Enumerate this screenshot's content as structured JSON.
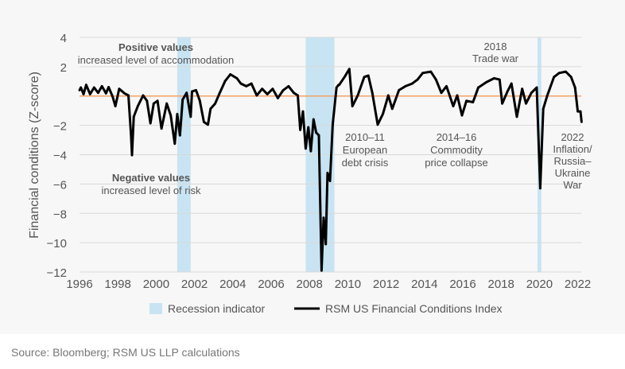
{
  "chart_data": {
    "type": "line",
    "ylabel": "Financial conditions (Z-score)",
    "xlabel": "",
    "xlim": [
      1996,
      2022.3
    ],
    "ylim": [
      -12,
      4
    ],
    "x_ticks": [
      1996,
      1998,
      2000,
      2002,
      2004,
      2006,
      2008,
      2010,
      2012,
      2014,
      2016,
      2018,
      2020,
      2022
    ],
    "x_tick_labels": [
      "1996",
      "1998",
      "2000",
      "2002",
      "2004",
      "2006",
      "2008",
      "2010",
      "2012",
      "2014",
      "2016",
      "2018",
      "2020",
      "2022"
    ],
    "y_ticks": [
      4,
      2,
      -2,
      -4,
      -6,
      -8,
      -10,
      -12
    ],
    "y_tick_labels": [
      "4",
      "2",
      "−2",
      "−4",
      "−6",
      "−8",
      "−10",
      "−12"
    ],
    "reference_line": 0,
    "grid": true,
    "recessions": [
      [
        2001.1,
        2001.8
      ],
      [
        2007.8,
        2009.3
      ],
      [
        2019.9,
        2020.1
      ]
    ],
    "legend": {
      "placement": "bottom",
      "items": [
        "Recession indicator",
        "RSM US Financial Conditions Index"
      ]
    },
    "series": [
      {
        "name": "RSM US Financial Conditions Index",
        "x": [
          1996.0,
          1996.07,
          1996.21,
          1996.35,
          1996.55,
          1996.76,
          1996.97,
          1997.17,
          1997.38,
          1997.52,
          1997.73,
          1997.87,
          1998.07,
          1998.35,
          1998.55,
          1998.69,
          1998.74,
          1998.83,
          1999.04,
          1999.32,
          1999.52,
          1999.7,
          1999.87,
          2000.07,
          2000.28,
          2000.55,
          2000.76,
          2000.97,
          2001.1,
          2001.24,
          2001.38,
          2001.59,
          2001.8,
          2001.87,
          2002.08,
          2002.28,
          2002.49,
          2002.7,
          2002.84,
          2003.08,
          2003.32,
          2003.6,
          2003.87,
          2004.21,
          2004.42,
          2004.7,
          2004.97,
          2005.25,
          2005.53,
          2005.8,
          2006.08,
          2006.35,
          2006.63,
          2006.91,
          2007.18,
          2007.39,
          2007.52,
          2007.66,
          2007.8,
          2007.94,
          2008.07,
          2008.21,
          2008.35,
          2008.49,
          2008.63,
          2008.74,
          2008.85,
          2008.94,
          2009.07,
          2009.21,
          2009.41,
          2009.52,
          2009.55,
          2009.83,
          2010.08,
          2010.24,
          2010.52,
          2010.86,
          2011.07,
          2011.28,
          2011.56,
          2011.83,
          2012.11,
          2012.32,
          2012.67,
          2013.01,
          2013.36,
          2013.64,
          2013.91,
          2014.33,
          2014.6,
          2014.88,
          2015.15,
          2015.5,
          2015.71,
          2015.96,
          2016.19,
          2016.53,
          2016.81,
          2017.23,
          2017.64,
          2017.92,
          2018.06,
          2018.33,
          2018.54,
          2018.82,
          2019.1,
          2019.3,
          2019.58,
          2019.86,
          2020.04,
          2020.2,
          2020.41,
          2020.76,
          2021.03,
          2021.37,
          2021.65,
          2021.86,
          2022.0,
          2022.14,
          2022.2
        ],
        "values": [
          0.4,
          0.58,
          0.13,
          0.76,
          0.13,
          0.58,
          0.22,
          0.67,
          0.18,
          0.61,
          -0.05,
          -0.69,
          0.49,
          0.18,
          0.04,
          -2.68,
          -4.03,
          -1.41,
          -0.69,
          0.04,
          -0.33,
          -1.86,
          -0.51,
          -0.33,
          -2.22,
          -0.51,
          -1.32,
          -3.25,
          -1.23,
          -2.68,
          -0.24,
          0.22,
          -1.41,
          0.31,
          0.4,
          -0.33,
          -1.77,
          -1.95,
          -0.87,
          -0.51,
          0.22,
          1.03,
          1.48,
          1.21,
          0.85,
          0.67,
          0.85,
          0.04,
          0.49,
          0.13,
          0.49,
          -0.14,
          0.4,
          0.67,
          0.22,
          0.04,
          -2.31,
          -1.05,
          -3.58,
          -2.13,
          -3.76,
          -1.59,
          -2.49,
          -2.68,
          -11.9,
          -8.3,
          -10.1,
          -5.24,
          -5.79,
          -1.95,
          0.58,
          0.76,
          0.76,
          1.3,
          1.84,
          -0.69,
          0.04,
          1.3,
          1.39,
          0.22,
          -1.95,
          -1.23,
          0.04,
          -0.87,
          0.4,
          0.67,
          0.85,
          1.12,
          1.57,
          1.66,
          1.12,
          0.22,
          0.67,
          -0.69,
          0.04,
          -1.32,
          -0.33,
          -0.42,
          0.58,
          0.94,
          1.21,
          1.12,
          -0.51,
          0.31,
          0.85,
          -1.41,
          0.49,
          -0.51,
          0.22,
          0.58,
          -6.29,
          -0.87,
          0.04,
          1.3,
          1.57,
          1.66,
          1.3,
          0.58,
          -1.05,
          -1.05,
          -1.77
        ]
      }
    ]
  },
  "annotations": {
    "positive_title": "Positive values",
    "positive_sub": "increased level of accommodation",
    "negative_title": "Negative values",
    "negative_sub": "increased level of risk",
    "euro_1": "2010–11",
    "euro_2": "European",
    "euro_3": "debt crisis",
    "comm_1": "2014–16",
    "comm_2": "Commodity",
    "comm_3": "price collapse",
    "trade_1": "2018",
    "trade_2": "Trade war",
    "war_1": "2022",
    "war_2": "Inflation/",
    "war_3": "Russia–",
    "war_4": "Ukraine",
    "war_5": "War"
  },
  "source": "Source: Bloomberg; RSM US LLP calculations",
  "colors": {
    "line": "#000000",
    "recession": "#c8e4f2",
    "zero": "#f4a261",
    "grid": "#d8d8d8"
  }
}
